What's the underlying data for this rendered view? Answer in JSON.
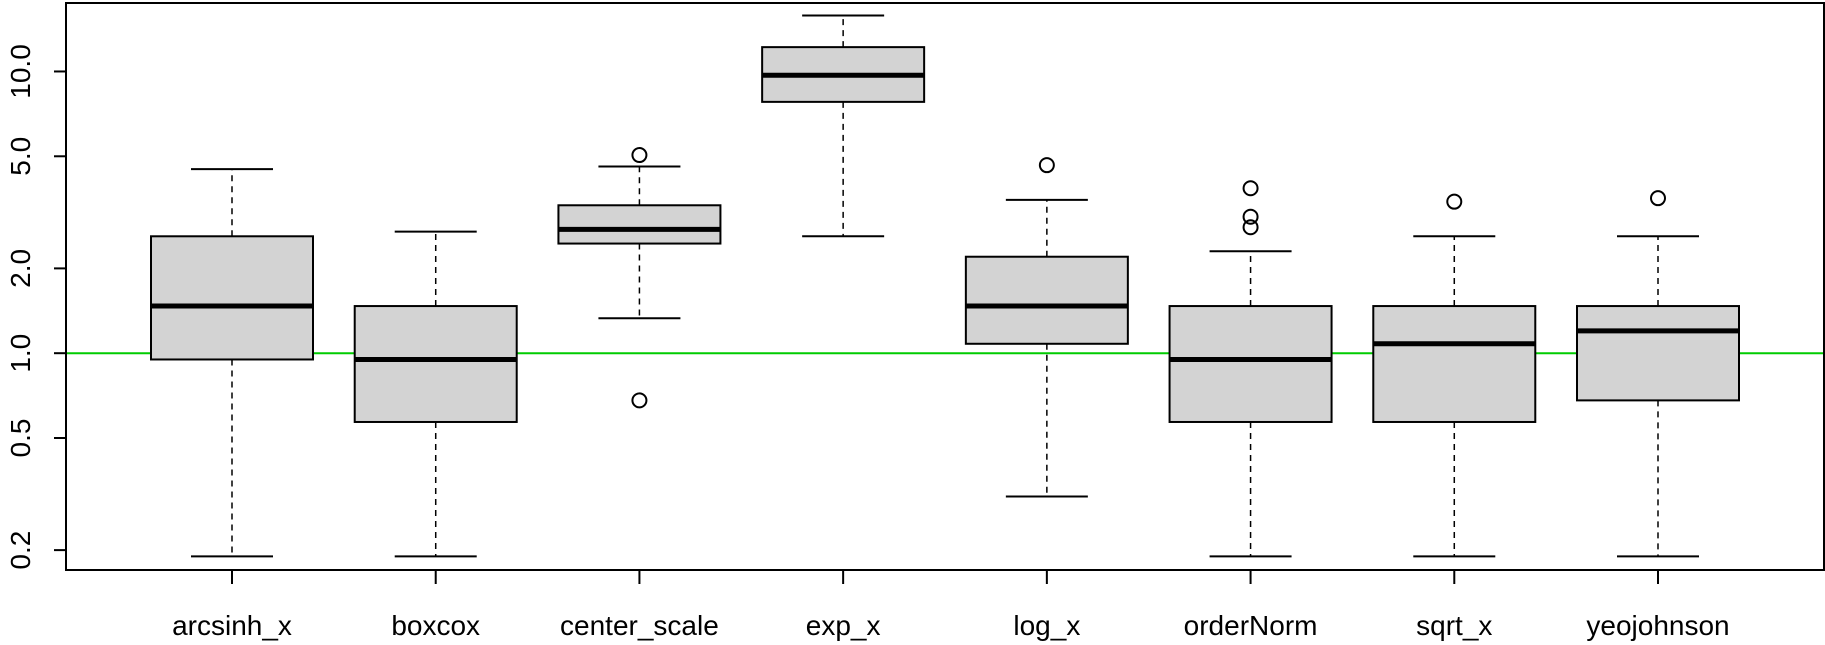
{
  "chart_data": {
    "type": "boxplot",
    "title": "",
    "xlabel": "",
    "ylabel": "",
    "y_scale": "log",
    "ylim": [
      0.17,
      17.5
    ],
    "y_ticks": [
      0.2,
      0.5,
      1.0,
      2.0,
      5.0,
      10.0
    ],
    "y_tick_labels": [
      "0.2",
      "0.5",
      "1.0",
      "2.0",
      "5.0",
      "10.0"
    ],
    "reference_line": {
      "y": 1.0,
      "color": "#00cc00"
    },
    "box_fill": "#d3d3d3",
    "categories": [
      "arcsinh_x",
      "boxcox",
      "center_scale",
      "exp_x",
      "log_x",
      "orderNorm",
      "sqrt_x",
      "yeojohnson"
    ],
    "boxes": [
      {
        "lower_whisker": 0.19,
        "q1": 0.95,
        "median": 1.47,
        "q3": 2.6,
        "upper_whisker": 4.5,
        "outliers": []
      },
      {
        "lower_whisker": 0.19,
        "q1": 0.57,
        "median": 0.95,
        "q3": 1.47,
        "upper_whisker": 2.7,
        "outliers": []
      },
      {
        "lower_whisker": 1.33,
        "q1": 2.45,
        "median": 2.75,
        "q3": 3.35,
        "upper_whisker": 4.6,
        "outliers": [
          5.05,
          0.68
        ]
      },
      {
        "lower_whisker": 2.6,
        "q1": 7.8,
        "median": 9.7,
        "q3": 12.2,
        "upper_whisker": 15.8,
        "outliers": []
      },
      {
        "lower_whisker": 0.31,
        "q1": 1.08,
        "median": 1.47,
        "q3": 2.2,
        "upper_whisker": 3.5,
        "outliers": [
          4.65
        ]
      },
      {
        "lower_whisker": 0.19,
        "q1": 0.57,
        "median": 0.95,
        "q3": 1.47,
        "upper_whisker": 2.3,
        "outliers": [
          3.85,
          3.05,
          2.8
        ]
      },
      {
        "lower_whisker": 0.19,
        "q1": 0.57,
        "median": 1.08,
        "q3": 1.47,
        "upper_whisker": 2.6,
        "outliers": [
          3.45
        ]
      },
      {
        "lower_whisker": 0.19,
        "q1": 0.68,
        "median": 1.2,
        "q3": 1.47,
        "upper_whisker": 2.6,
        "outliers": [
          3.55
        ]
      }
    ]
  }
}
